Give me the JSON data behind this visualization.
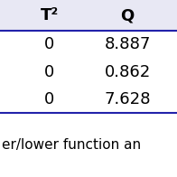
{
  "columns": [
    "T²",
    "Q"
  ],
  "rows": [
    [
      "0",
      "8.887"
    ],
    [
      "0",
      "0.862"
    ],
    [
      "0",
      "7.628"
    ]
  ],
  "header_bg": "#e8e8f4",
  "row_bg": "#ffffff",
  "footer_text": "er/lower function an",
  "footer_bg": "#ffffff",
  "line_color": "#2222aa",
  "header_fontsize": 13,
  "cell_fontsize": 13,
  "footer_fontsize": 11,
  "fig_bg": "#ffffff"
}
